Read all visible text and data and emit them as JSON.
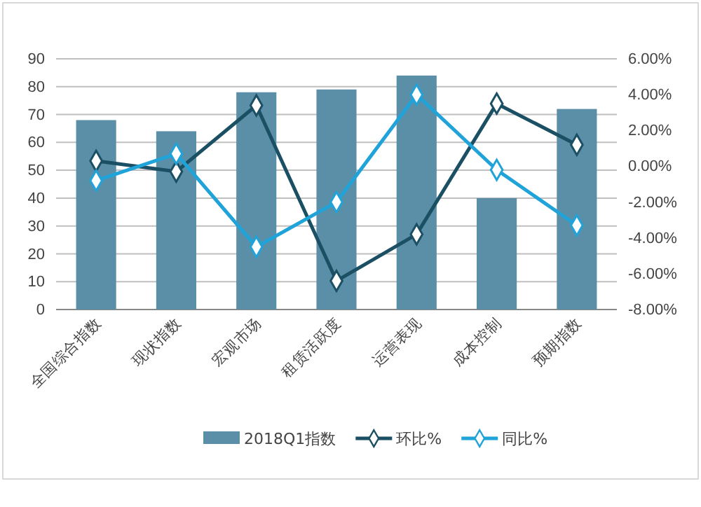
{
  "chart_data": {
    "type": "bar",
    "categories": [
      "全国综合指数",
      "现状指数",
      "宏观市场",
      "租赁活跃度",
      "运营表现",
      "成本控制",
      "预期指数"
    ],
    "series": [
      {
        "name": "2018Q1指数",
        "color": "#5b8fa8",
        "values": [
          68,
          64,
          78,
          79,
          84,
          40,
          72
        ]
      },
      {
        "name": "环比%",
        "type": "line",
        "axis": "y2",
        "color": "#1b4f63",
        "values": [
          0.3,
          -0.3,
          3.4,
          -6.4,
          -3.8,
          3.5,
          1.2
        ]
      },
      {
        "name": "同比%",
        "type": "line",
        "axis": "y2",
        "color": "#1fa3d9",
        "values": [
          -0.8,
          0.7,
          -4.5,
          -2.0,
          4.0,
          -0.2,
          -3.3
        ]
      }
    ],
    "ylim": [
      0,
      90
    ],
    "yticks": [
      0,
      10,
      20,
      30,
      40,
      50,
      60,
      70,
      80,
      90
    ],
    "y2lim": [
      -8,
      6
    ],
    "y2ticks": [
      {
        "value": -8,
        "label": "-8.00%"
      },
      {
        "value": -6,
        "label": "-6.00%"
      },
      {
        "value": -4,
        "label": "-4.00%"
      },
      {
        "value": -2,
        "label": "-2.00%"
      },
      {
        "value": 0,
        "label": "0.00%"
      },
      {
        "value": 2,
        "label": "2.00%"
      },
      {
        "value": 4,
        "label": "4.00%"
      },
      {
        "value": 6,
        "label": "6.00%"
      }
    ],
    "grid": "y",
    "legend": "bottom",
    "marker": "diamond"
  }
}
